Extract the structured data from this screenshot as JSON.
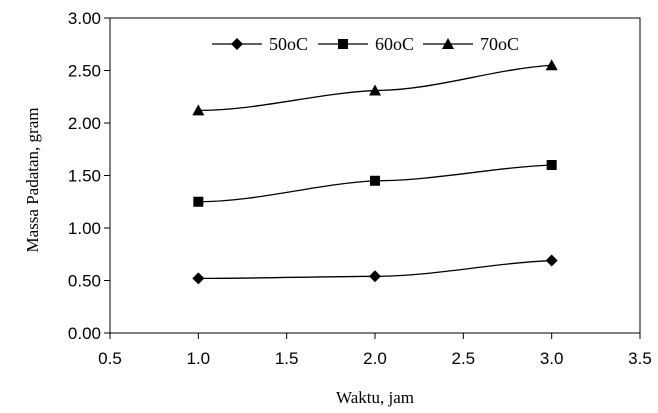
{
  "chart_data": {
    "type": "line",
    "title": "",
    "xlabel": "Waktu, jam",
    "ylabel": "Massa Padatan, gram",
    "xlim": [
      0.5,
      3.5
    ],
    "ylim": [
      0,
      3
    ],
    "x_ticks": [
      0.5,
      1.0,
      1.5,
      2.0,
      2.5,
      3.0,
      3.5
    ],
    "x_tick_labels": [
      "0.5",
      "1.0",
      "1.5",
      "2.0",
      "2.5",
      "3.0",
      "3.5"
    ],
    "y_ticks": [
      0,
      0.5,
      1,
      1.5,
      2,
      2.5,
      3
    ],
    "y_tick_labels": [
      "0.00",
      "0.50",
      "1.00",
      "1.50",
      "2.00",
      "2.50",
      "3.00"
    ],
    "grid": false,
    "legend_position": "top-center",
    "x": [
      1.0,
      2.0,
      3.0
    ],
    "series": [
      {
        "name": "50oC",
        "marker": "diamond",
        "values": [
          0.52,
          0.54,
          0.69
        ]
      },
      {
        "name": "60oC",
        "marker": "square",
        "values": [
          1.25,
          1.45,
          1.6
        ]
      },
      {
        "name": "70oC",
        "marker": "triangle",
        "values": [
          2.12,
          2.31,
          2.55
        ]
      }
    ],
    "colors": {
      "line": "#000000",
      "marker": "#000000"
    }
  }
}
